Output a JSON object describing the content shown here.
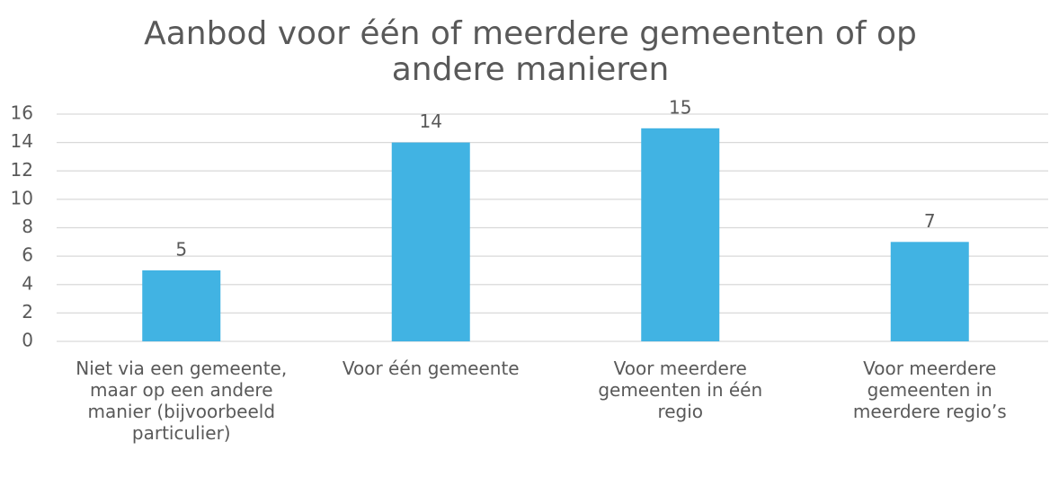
{
  "chart_data": {
    "type": "bar",
    "title": "Aanbod voor één of meerdere gemeenten of op andere manieren",
    "categories": [
      "Niet via een gemeente, maar op een andere manier (bijvoorbeeld particulier)",
      "Voor één gemeente",
      "Voor meerdere gemeenten in één regio",
      "Voor meerdere gemeenten in meerdere regio’s"
    ],
    "values": [
      5,
      14,
      15,
      7
    ],
    "color": "#41b3e3",
    "ylim": [
      0,
      16
    ],
    "yticks": [
      0,
      2,
      4,
      6,
      8,
      10,
      12,
      14,
      16
    ],
    "grid": true
  }
}
